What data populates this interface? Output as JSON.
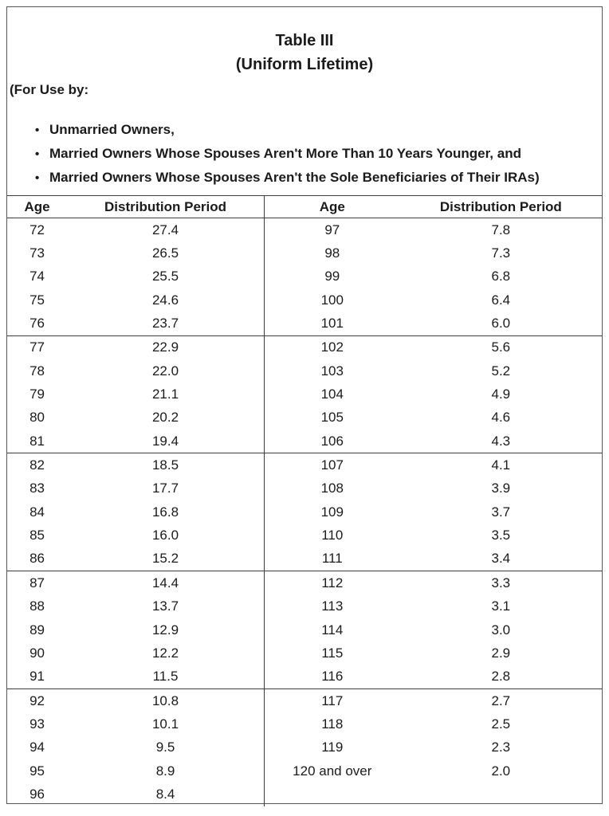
{
  "header": {
    "title": "Table III",
    "subtitle": "(Uniform Lifetime)",
    "for_use_by": "(For Use by:",
    "bullet_glyph": "•",
    "bullets": [
      "Unmarried Owners,",
      "Married Owners Whose Spouses Aren't More Than 10 Years Younger, and",
      "Married Owners Whose Spouses Aren't the Sole Beneficiaries of Their IRAs)"
    ]
  },
  "table": {
    "col_headers": [
      "Age",
      "Distribution Period",
      "Age",
      "Distribution Period"
    ],
    "rows": [
      {
        "la": "72",
        "lp": "27.4",
        "ra": "97",
        "rp": "7.8"
      },
      {
        "la": "73",
        "lp": "26.5",
        "ra": "98",
        "rp": "7.3"
      },
      {
        "la": "74",
        "lp": "25.5",
        "ra": "99",
        "rp": "6.8"
      },
      {
        "la": "75",
        "lp": "24.6",
        "ra": "100",
        "rp": "6.4"
      },
      {
        "la": "76",
        "lp": "23.7",
        "ra": "101",
        "rp": "6.0"
      },
      {
        "la": "77",
        "lp": "22.9",
        "ra": "102",
        "rp": "5.6"
      },
      {
        "la": "78",
        "lp": "22.0",
        "ra": "103",
        "rp": "5.2"
      },
      {
        "la": "79",
        "lp": "21.1",
        "ra": "104",
        "rp": "4.9"
      },
      {
        "la": "80",
        "lp": "20.2",
        "ra": "105",
        "rp": "4.6"
      },
      {
        "la": "81",
        "lp": "19.4",
        "ra": "106",
        "rp": "4.3"
      },
      {
        "la": "82",
        "lp": "18.5",
        "ra": "107",
        "rp": "4.1"
      },
      {
        "la": "83",
        "lp": "17.7",
        "ra": "108",
        "rp": "3.9"
      },
      {
        "la": "84",
        "lp": "16.8",
        "ra": "109",
        "rp": "3.7"
      },
      {
        "la": "85",
        "lp": "16.0",
        "ra": "110",
        "rp": "3.5"
      },
      {
        "la": "86",
        "lp": "15.2",
        "ra": "111",
        "rp": "3.4"
      },
      {
        "la": "87",
        "lp": "14.4",
        "ra": "112",
        "rp": "3.3"
      },
      {
        "la": "88",
        "lp": "13.7",
        "ra": "113",
        "rp": "3.1"
      },
      {
        "la": "89",
        "lp": "12.9",
        "ra": "114",
        "rp": "3.0"
      },
      {
        "la": "90",
        "lp": "12.2",
        "ra": "115",
        "rp": "2.9"
      },
      {
        "la": "91",
        "lp": "11.5",
        "ra": "116",
        "rp": "2.8"
      },
      {
        "la": "92",
        "lp": "10.8",
        "ra": "117",
        "rp": "2.7"
      },
      {
        "la": "93",
        "lp": "10.1",
        "ra": "118",
        "rp": "2.5"
      },
      {
        "la": "94",
        "lp": "9.5",
        "ra": "119",
        "rp": "2.3"
      },
      {
        "la": "95",
        "lp": "8.9",
        "ra": "120 and over",
        "rp": "2.0"
      },
      {
        "la": "96",
        "lp": "8.4",
        "ra": "",
        "rp": ""
      }
    ]
  },
  "colors": {
    "text": "#1b1b1b",
    "rule_line": "#3c3c3c",
    "frame_border": "#565656"
  }
}
